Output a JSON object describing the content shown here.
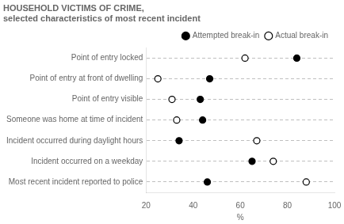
{
  "chart_data": {
    "type": "dot",
    "orientation": "horizontal",
    "title": "HOUSEHOLD VICTIMS OF CRIME, selected characteristics of most recent incident",
    "categories": [
      "Point of entry locked",
      "Point of entry at front of dwelling",
      "Point of entry visible",
      "Someone was home at time of incident",
      "Incident occurred during daylight hours",
      "Incident occurred on a weekday",
      "Most recent incident reported to police"
    ],
    "series": [
      {
        "name": "Attempted break-in",
        "color": "#000000",
        "marker": "circle",
        "values": [
          84,
          47,
          43,
          44,
          34,
          65,
          46
        ]
      },
      {
        "name": "Actual break-in",
        "color": "#000000",
        "marker": "open_circle",
        "values": [
          62,
          25,
          31,
          33,
          67,
          74,
          88
        ]
      }
    ],
    "xlabel": "%",
    "xlim": [
      20,
      100
    ],
    "xticks": [
      20,
      40,
      60,
      80,
      100
    ],
    "grid": true,
    "legend": "upper right"
  }
}
